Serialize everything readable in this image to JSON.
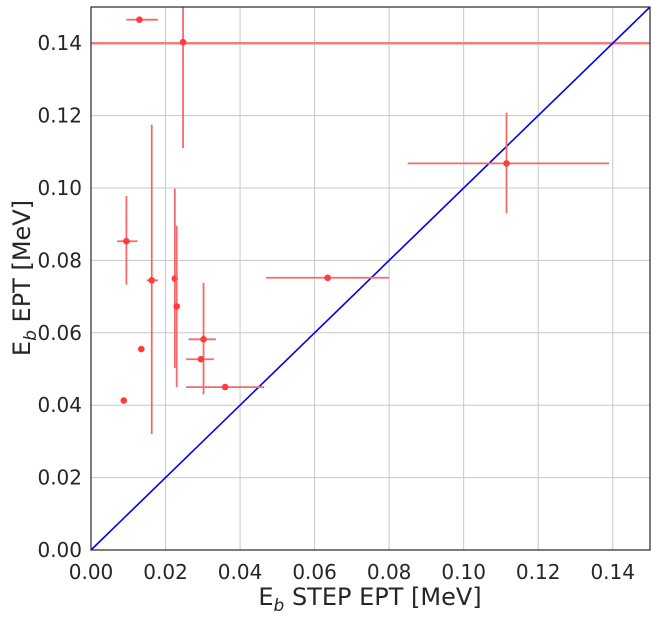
{
  "chart_data": {
    "type": "scatter",
    "xlabel_main": "E",
    "xlabel_sub": "b",
    "xlabel_rest": " STEP EPT [MeV]",
    "ylabel_main": "E",
    "ylabel_sub": "b",
    "ylabel_rest": " EPT [MeV]",
    "xlim": [
      0,
      0.15
    ],
    "ylim": [
      0,
      0.15
    ],
    "xticks": [
      "0.00",
      "0.02",
      "0.04",
      "0.06",
      "0.08",
      "0.10",
      "0.12",
      "0.14"
    ],
    "yticks": [
      "0.00",
      "0.02",
      "0.04",
      "0.06",
      "0.08",
      "0.10",
      "0.12",
      "0.14"
    ],
    "grid": true,
    "colors": {
      "points": "#ff3b3b",
      "errorbars": "#f46a6a",
      "diagonal": "#0000ee",
      "hline": "#f08080"
    },
    "hline_y": 0.14,
    "diagonal": [
      [
        0,
        0
      ],
      [
        0.15,
        0.15
      ]
    ],
    "points": [
      {
        "x": 0.013,
        "y": 0.1465,
        "xerr": [
          0.0095,
          0.018
        ],
        "yerr": null
      },
      {
        "x": 0.0247,
        "y": 0.1403,
        "xerr": null,
        "yerr": [
          0.111,
          0.15
        ]
      },
      {
        "x": 0.0095,
        "y": 0.0853,
        "xerr": [
          0.007,
          0.0125
        ],
        "yerr": [
          0.0733,
          0.0978
        ]
      },
      {
        "x": 0.0163,
        "y": 0.0745,
        "xerr": [
          0.015,
          0.018
        ],
        "yerr": [
          0.032,
          0.1175
        ]
      },
      {
        "x": 0.0225,
        "y": 0.075,
        "xerr": [
          0.022,
          0.0232
        ],
        "yerr": [
          0.0503,
          0.0998
        ]
      },
      {
        "x": 0.023,
        "y": 0.0673,
        "xerr": [
          0.0225,
          0.0235
        ],
        "yerr": [
          0.045,
          0.0895
        ]
      },
      {
        "x": 0.0302,
        "y": 0.0582,
        "xerr": [
          0.0262,
          0.0335
        ],
        "yerr": [
          0.043,
          0.0738
        ]
      },
      {
        "x": 0.0295,
        "y": 0.0527,
        "xerr": [
          0.0255,
          0.033
        ],
        "yerr": null
      },
      {
        "x": 0.036,
        "y": 0.045,
        "xerr": [
          0.0255,
          0.0465
        ],
        "yerr": null
      },
      {
        "x": 0.0135,
        "y": 0.0555,
        "xerr": null,
        "yerr": null
      },
      {
        "x": 0.0088,
        "y": 0.0413,
        "xerr": null,
        "yerr": null
      },
      {
        "x": 0.0635,
        "y": 0.0752,
        "xerr": [
          0.047,
          0.08
        ],
        "yerr": null
      },
      {
        "x": 0.1115,
        "y": 0.1068,
        "xerr": [
          0.085,
          0.139
        ],
        "yerr": [
          0.093,
          0.1208
        ]
      }
    ]
  }
}
